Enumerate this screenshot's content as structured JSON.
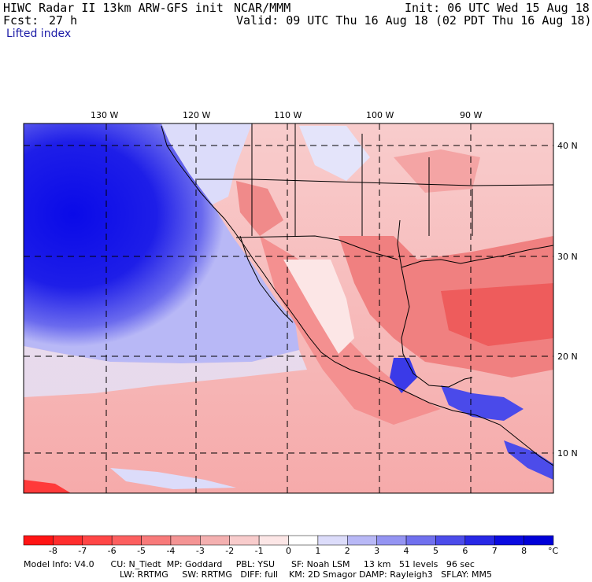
{
  "header": {
    "title": "HIWC Radar II 13km ARW-GFS init",
    "org": "NCAR/MMM",
    "init": "Init: 06 UTC Wed 15 Aug 18",
    "fcst_label": "Fcst:",
    "fcst_value": "27 h",
    "valid": "Valid: 09 UTC Thu 16 Aug 18 (02 PDT Thu 16 Aug 18)",
    "field": "Lifted index"
  },
  "map": {
    "lon_labels": [
      "130 W",
      "120 W",
      "110 W",
      "100 W",
      "90 W"
    ],
    "lat_labels": [
      "40 N",
      "30 N",
      "20 N",
      "10 N"
    ]
  },
  "colorbar": {
    "unit": "°C",
    "labels": [
      "-8",
      "-7",
      "-6",
      "-5",
      "-4",
      "-3",
      "-2",
      "-1",
      "0",
      "1",
      "2",
      "3",
      "4",
      "5",
      "6",
      "7",
      "8"
    ],
    "colors": [
      "#ff1414",
      "#ff2d2d",
      "#ff4646",
      "#fc5f5f",
      "#f87a7a",
      "#f49494",
      "#f4b0b0",
      "#f8cccc",
      "#fce6e6",
      "#ffffff",
      "#dcdcfa",
      "#b8b8f6",
      "#9494f2",
      "#7070ee",
      "#4c4cea",
      "#2828e6",
      "#0a0ae0",
      "#0000d8"
    ]
  },
  "info": {
    "line1": "Model Info: V4.0      CU: N_Tiedt  MP: Goddard     PBL: YSU      SF: Noah LSM     13 km   51 levels   96 sec",
    "line2": "LW: RRTMG     SW: RRTMG   DIFF: full    KM: 2D Smagor DAMP: Rayleigh3   SFLAY: MM5"
  }
}
